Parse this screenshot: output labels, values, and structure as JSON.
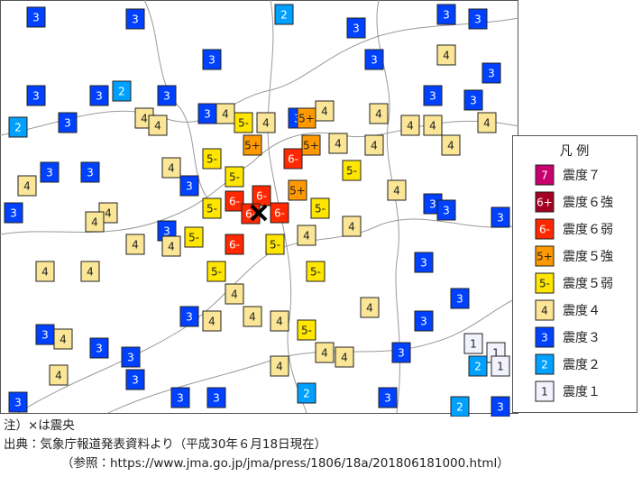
{
  "map": {
    "stations": [
      "3",
      "3",
      "2",
      "3",
      "3",
      "3",
      "3",
      "4",
      "3",
      "3",
      "3",
      "3",
      "2",
      "3",
      "3",
      "3",
      "2",
      "3",
      "4",
      "4",
      "3",
      "4",
      "5-",
      "4",
      "3",
      "4",
      "5+",
      "4",
      "4",
      "4",
      "4",
      "5+",
      "6-",
      "5+",
      "4",
      "4",
      "4",
      "3",
      "3",
      "4",
      "5-",
      "5-",
      "5-",
      "3",
      "4",
      "3",
      "4",
      "4",
      "6-",
      "6-",
      "6-",
      "6-",
      "5+",
      "5-",
      "5-",
      "5-",
      "4",
      "4",
      "3",
      "3",
      "3",
      "4",
      "4",
      "6-",
      "5-",
      "4",
      "3",
      "3",
      "4",
      "4",
      "5-",
      "5-",
      "4",
      "4",
      "4",
      "5-",
      "4",
      "3",
      "3",
      "3",
      "4",
      "3",
      "4",
      "3",
      "4",
      "4",
      "3",
      "1",
      "1",
      "2",
      "1",
      "3",
      "4",
      "3",
      "3",
      "2",
      "3",
      "2",
      "3",
      "3",
      "4",
      "3"
    ]
  },
  "legend": {
    "title": "凡 例",
    "items": [
      {
        "badge": "7",
        "label": "震度７",
        "color": "#c8006e",
        "text_color": "#ffffff"
      },
      {
        "badge": "6+",
        "label": "震度６強",
        "color": "#a50021",
        "text_color": "#ffffff"
      },
      {
        "badge": "6-",
        "label": "震度６弱",
        "color": "#ff2800",
        "text_color": "#ffffff"
      },
      {
        "badge": "5+",
        "label": "震度５強",
        "color": "#ff9900",
        "text_color": "#222222"
      },
      {
        "badge": "5-",
        "label": "震度５弱",
        "color": "#ffe600",
        "text_color": "#222222"
      },
      {
        "badge": "4",
        "label": "震度４",
        "color": "#fae696",
        "text_color": "#222222"
      },
      {
        "badge": "3",
        "label": "震度３",
        "color": "#0041ff",
        "text_color": "#ffffff"
      },
      {
        "badge": "2",
        "label": "震度２",
        "color": "#00a0ff",
        "text_color": "#ffffff"
      },
      {
        "badge": "1",
        "label": "震度１",
        "color": "#f2f2ff",
        "text_color": "#222222"
      }
    ]
  },
  "notes": [
    "注）×は震央",
    "出典：気象庁報道発表資料より（平成30年６月18日現在）",
    "（参照：https://www.jma.go.jp/jma/press/1806/18a/201806181000.html）"
  ]
}
